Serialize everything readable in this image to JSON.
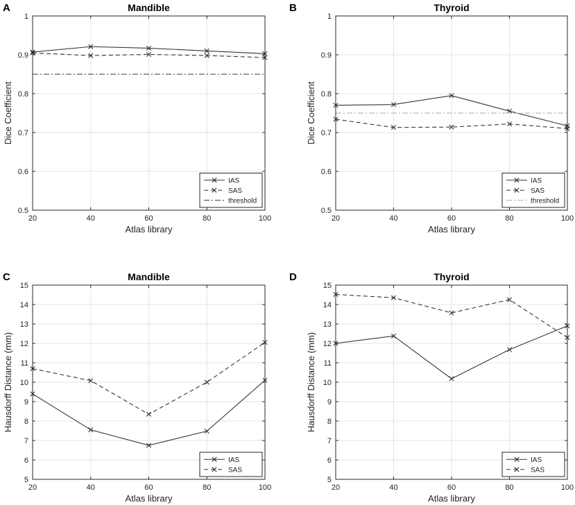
{
  "chart_data": [
    {
      "panel": "A",
      "type": "line",
      "title": "Mandible",
      "xlabel": "Atlas library",
      "ylabel": "Dice Coefficient",
      "x": [
        20,
        40,
        60,
        80,
        100
      ],
      "xlim": [
        20,
        100
      ],
      "ylim": [
        0.5,
        1
      ],
      "xticks": [
        "20",
        "40",
        "60",
        "80",
        "100"
      ],
      "yticks": [
        "0.5",
        "0.6",
        "0.7",
        "0.8",
        "0.9",
        "1"
      ],
      "grid": true,
      "legend_position": "bottom-right",
      "series": [
        {
          "name": "IAS",
          "style": "solid",
          "marker": "x",
          "color": "#333333",
          "values": [
            0.907,
            0.921,
            0.917,
            0.91,
            0.903
          ]
        },
        {
          "name": "SAS",
          "style": "dashed",
          "marker": "x",
          "color": "#333333",
          "values": [
            0.905,
            0.898,
            0.901,
            0.898,
            0.893
          ]
        },
        {
          "name": "threshold",
          "style": "dashdot",
          "marker": "none",
          "color": "#333333",
          "values": [
            0.85,
            0.85,
            0.85,
            0.85,
            0.85
          ]
        }
      ]
    },
    {
      "panel": "B",
      "type": "line",
      "title": "Thyroid",
      "xlabel": "Atlas library",
      "ylabel": "Dice Coefficient",
      "x": [
        20,
        40,
        60,
        80,
        100
      ],
      "xlim": [
        20,
        100
      ],
      "ylim": [
        0.5,
        1
      ],
      "xticks": [
        "20",
        "40",
        "60",
        "80",
        "100"
      ],
      "yticks": [
        "0.5",
        "0.6",
        "0.7",
        "0.8",
        "0.9",
        "1"
      ],
      "grid": true,
      "legend_position": "bottom-right",
      "series": [
        {
          "name": "IAS",
          "style": "solid",
          "marker": "x",
          "color": "#333333",
          "values": [
            0.77,
            0.772,
            0.795,
            0.755,
            0.717
          ]
        },
        {
          "name": "SAS",
          "style": "dashed",
          "marker": "x",
          "color": "#333333",
          "values": [
            0.734,
            0.713,
            0.714,
            0.722,
            0.71
          ]
        },
        {
          "name": "threshold",
          "style": "dashdot",
          "marker": "none",
          "color": "#aaaaaa",
          "values": [
            0.75,
            0.75,
            0.75,
            0.75,
            0.75
          ]
        }
      ]
    },
    {
      "panel": "C",
      "type": "line",
      "title": "Mandible",
      "xlabel": "Atlas library",
      "ylabel": "Hausdorff Distance (mm)",
      "x": [
        20,
        40,
        60,
        80,
        100
      ],
      "xlim": [
        20,
        100
      ],
      "ylim": [
        5,
        15
      ],
      "xticks": [
        "20",
        "40",
        "60",
        "80",
        "100"
      ],
      "yticks": [
        "5",
        "6",
        "7",
        "8",
        "9",
        "10",
        "11",
        "12",
        "13",
        "14",
        "15"
      ],
      "grid": true,
      "legend_position": "bottom-right",
      "series": [
        {
          "name": "IAS",
          "style": "solid",
          "marker": "x",
          "color": "#333333",
          "values": [
            9.4,
            7.55,
            6.75,
            7.48,
            10.1
          ]
        },
        {
          "name": "SAS",
          "style": "dashed",
          "marker": "x",
          "color": "#333333",
          "values": [
            10.7,
            10.08,
            8.35,
            10.0,
            12.05
          ]
        }
      ]
    },
    {
      "panel": "D",
      "type": "line",
      "title": "Thyroid",
      "xlabel": "Atlas library",
      "ylabel": "Hausdorff Distance (mm)",
      "x": [
        20,
        40,
        60,
        80,
        100
      ],
      "xlim": [
        20,
        100
      ],
      "ylim": [
        5,
        15
      ],
      "xticks": [
        "20",
        "40",
        "60",
        "80",
        "100"
      ],
      "yticks": [
        "5",
        "6",
        "7",
        "8",
        "9",
        "10",
        "11",
        "12",
        "13",
        "14",
        "15"
      ],
      "grid": true,
      "legend_position": "bottom-right",
      "series": [
        {
          "name": "IAS",
          "style": "solid",
          "marker": "x",
          "color": "#333333",
          "values": [
            12.0,
            12.38,
            10.18,
            11.68,
            12.9
          ]
        },
        {
          "name": "SAS",
          "style": "dashed",
          "marker": "x",
          "color": "#333333",
          "values": [
            14.52,
            14.35,
            13.57,
            14.25,
            12.3
          ]
        }
      ]
    }
  ]
}
